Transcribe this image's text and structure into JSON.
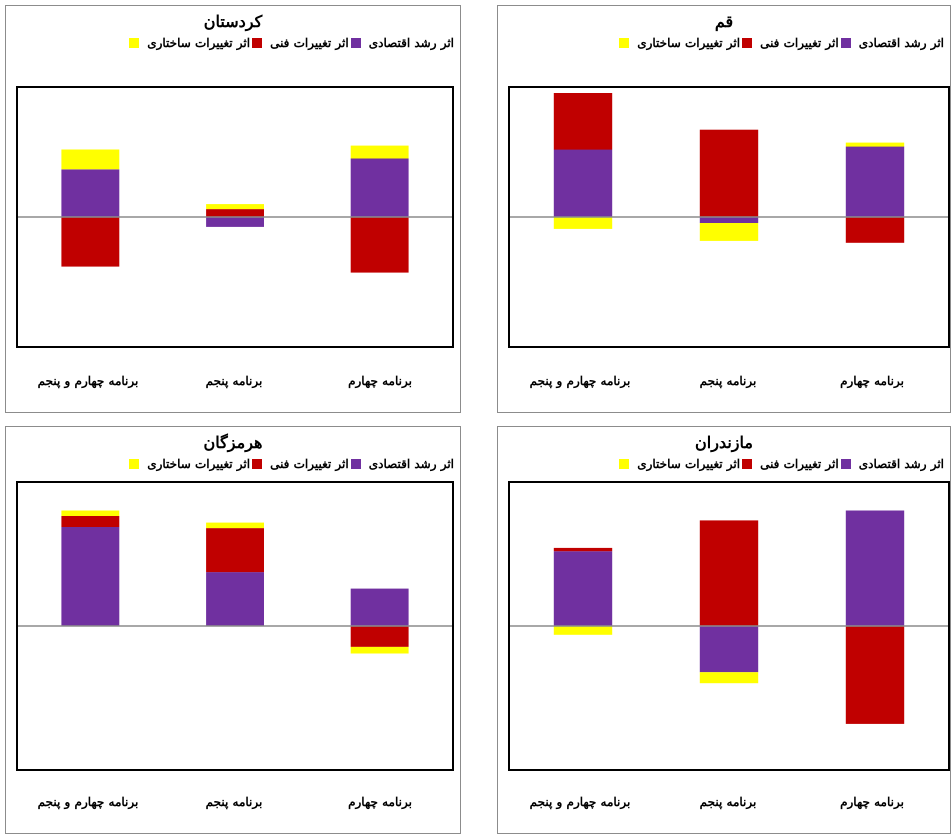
{
  "legend": [
    {
      "label": "اثر رشد اقتصادی",
      "color": "#7030a0"
    },
    {
      "label": "اثر تغییرات فنی",
      "color": "#c00000"
    },
    {
      "label": "اثر تغییرات ساختاری",
      "color": "#ffff00"
    }
  ],
  "chart_data": [
    {
      "type": "bar",
      "stacked": true,
      "title": "کردستان",
      "categories": [
        "برنامه چهارم و پنجم",
        "برنامه پنجم",
        "برنامه چهارم"
      ],
      "series": [
        {
          "name": "اثر رشد اقتصادی",
          "color": "#7030a0",
          "values": [
            48,
            -10,
            59
          ]
        },
        {
          "name": "اثر تغییرات فنی",
          "color": "#c00000",
          "values": [
            -50,
            8,
            -56
          ]
        },
        {
          "name": "اثر تغییرات ساختاری",
          "color": "#ffff00",
          "values": [
            20,
            5,
            13
          ]
        }
      ],
      "ylim": [
        -130,
        130
      ]
    },
    {
      "type": "bar",
      "stacked": true,
      "title": "قم",
      "categories": [
        "برنامه چهارم و پنجم",
        "برنامه پنجم",
        "برنامه چهارم"
      ],
      "series": [
        {
          "name": "اثر رشد اقتصادی",
          "color": "#7030a0",
          "values": [
            68,
            -6,
            71
          ]
        },
        {
          "name": "اثر تغییرات فنی",
          "color": "#c00000",
          "values": [
            57,
            88,
            -26
          ]
        },
        {
          "name": "اثر تغییرات ساختاری",
          "color": "#ffff00",
          "values": [
            -12,
            -18,
            4
          ]
        }
      ],
      "ylim": [
        -130,
        130
      ]
    },
    {
      "type": "bar",
      "stacked": true,
      "title": "هرمزگان",
      "categories": [
        "برنامه چهارم و پنجم",
        "برنامه پنجم",
        "برنامه چهارم"
      ],
      "series": [
        {
          "name": "اثر رشد اقتصادی",
          "color": "#7030a0",
          "values": [
            90,
            49,
            34
          ]
        },
        {
          "name": "اثر تغییرات فنی",
          "color": "#c00000",
          "values": [
            10,
            40,
            -19
          ]
        },
        {
          "name": "اثر تغییرات ساختاری",
          "color": "#ffff00",
          "values": [
            5,
            5,
            -6
          ]
        }
      ],
      "ylim": [
        -130,
        130
      ]
    },
    {
      "type": "bar",
      "stacked": true,
      "title": "مازندران",
      "categories": [
        "برنامه چهارم و پنجم",
        "برنامه پنجم",
        "برنامه چهارم"
      ],
      "series": [
        {
          "name": "اثر رشد اقتصادی",
          "color": "#7030a0",
          "values": [
            68,
            -42,
            105
          ]
        },
        {
          "name": "اثر تغییرات فنی",
          "color": "#c00000",
          "values": [
            3,
            96,
            -89
          ]
        },
        {
          "name": "اثر تغییرات ساختاری",
          "color": "#ffff00",
          "values": [
            -8,
            -10,
            0
          ]
        }
      ],
      "ylim": [
        -130,
        130
      ]
    }
  ]
}
